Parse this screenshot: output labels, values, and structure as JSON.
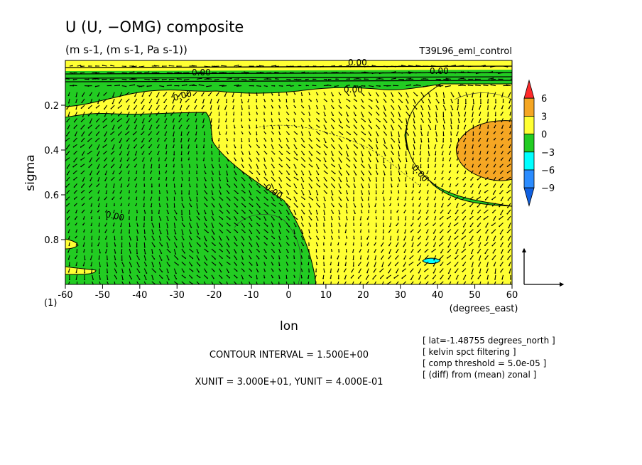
{
  "chart_data": {
    "type": "heatmap",
    "title": "U (U, −OMG) composite",
    "subtitle": "(m s-1, (m s-1, Pa s-1))",
    "run_label": "T39L96_eml_control",
    "xlabel": "lon",
    "xunits": "(degrees_east)",
    "ylabel": "sigma",
    "panel_label": "(1)",
    "xlim": [
      -60,
      60
    ],
    "ylim": [
      1.0,
      0.0
    ],
    "y_inverted": true,
    "xticks": [
      -60,
      -50,
      -40,
      -30,
      -20,
      -10,
      0,
      10,
      20,
      30,
      40,
      50,
      60
    ],
    "xtick_labels": [
      "-60",
      "-50",
      "-40",
      "-30",
      "-20",
      "-10",
      "0",
      "10",
      "20",
      "30",
      "40",
      "50",
      "60"
    ],
    "yticks": [
      0.2,
      0.4,
      0.6,
      0.8
    ],
    "ytick_labels": [
      "0.2",
      "0.4",
      "0.6",
      "0.8"
    ],
    "contour_label": "0.00",
    "colorbar": {
      "levels": [
        "6",
        "3",
        "0",
        "−3",
        "−6",
        "−9"
      ],
      "colors": [
        "#ff2a2a",
        "#f5a623",
        "#ffff33",
        "#22cc22",
        "#00ffff",
        "#2b8cff",
        "#1060e0"
      ]
    },
    "regions": [
      {
        "name": "positive",
        "range": "0 to 3",
        "color": "#ffff33"
      },
      {
        "name": "strong-positive",
        "range": "3 to 6",
        "color": "#f5a623",
        "center": [
          50,
          0.37
        ]
      },
      {
        "name": "negative",
        "range": "-3 to 0",
        "color": "#22cc22"
      },
      {
        "name": "strong-negative",
        "range": "-6 to -3",
        "color": "#00ffff",
        "center": [
          38,
          0.93
        ]
      }
    ],
    "info": {
      "contour_interval": "CONTOUR INTERVAL = 1.500E+00",
      "units": "XUNIT = 3.000E+01, YUNIT = 4.000E-01",
      "notes": [
        "[ lat=-1.48755 degrees_north ]",
        "[ kelvin spct filtering ]",
        "[ comp threshold = 5.0e-05 ]",
        "[ (diff) from (mean) zonal ]"
      ]
    },
    "grid": false
  }
}
